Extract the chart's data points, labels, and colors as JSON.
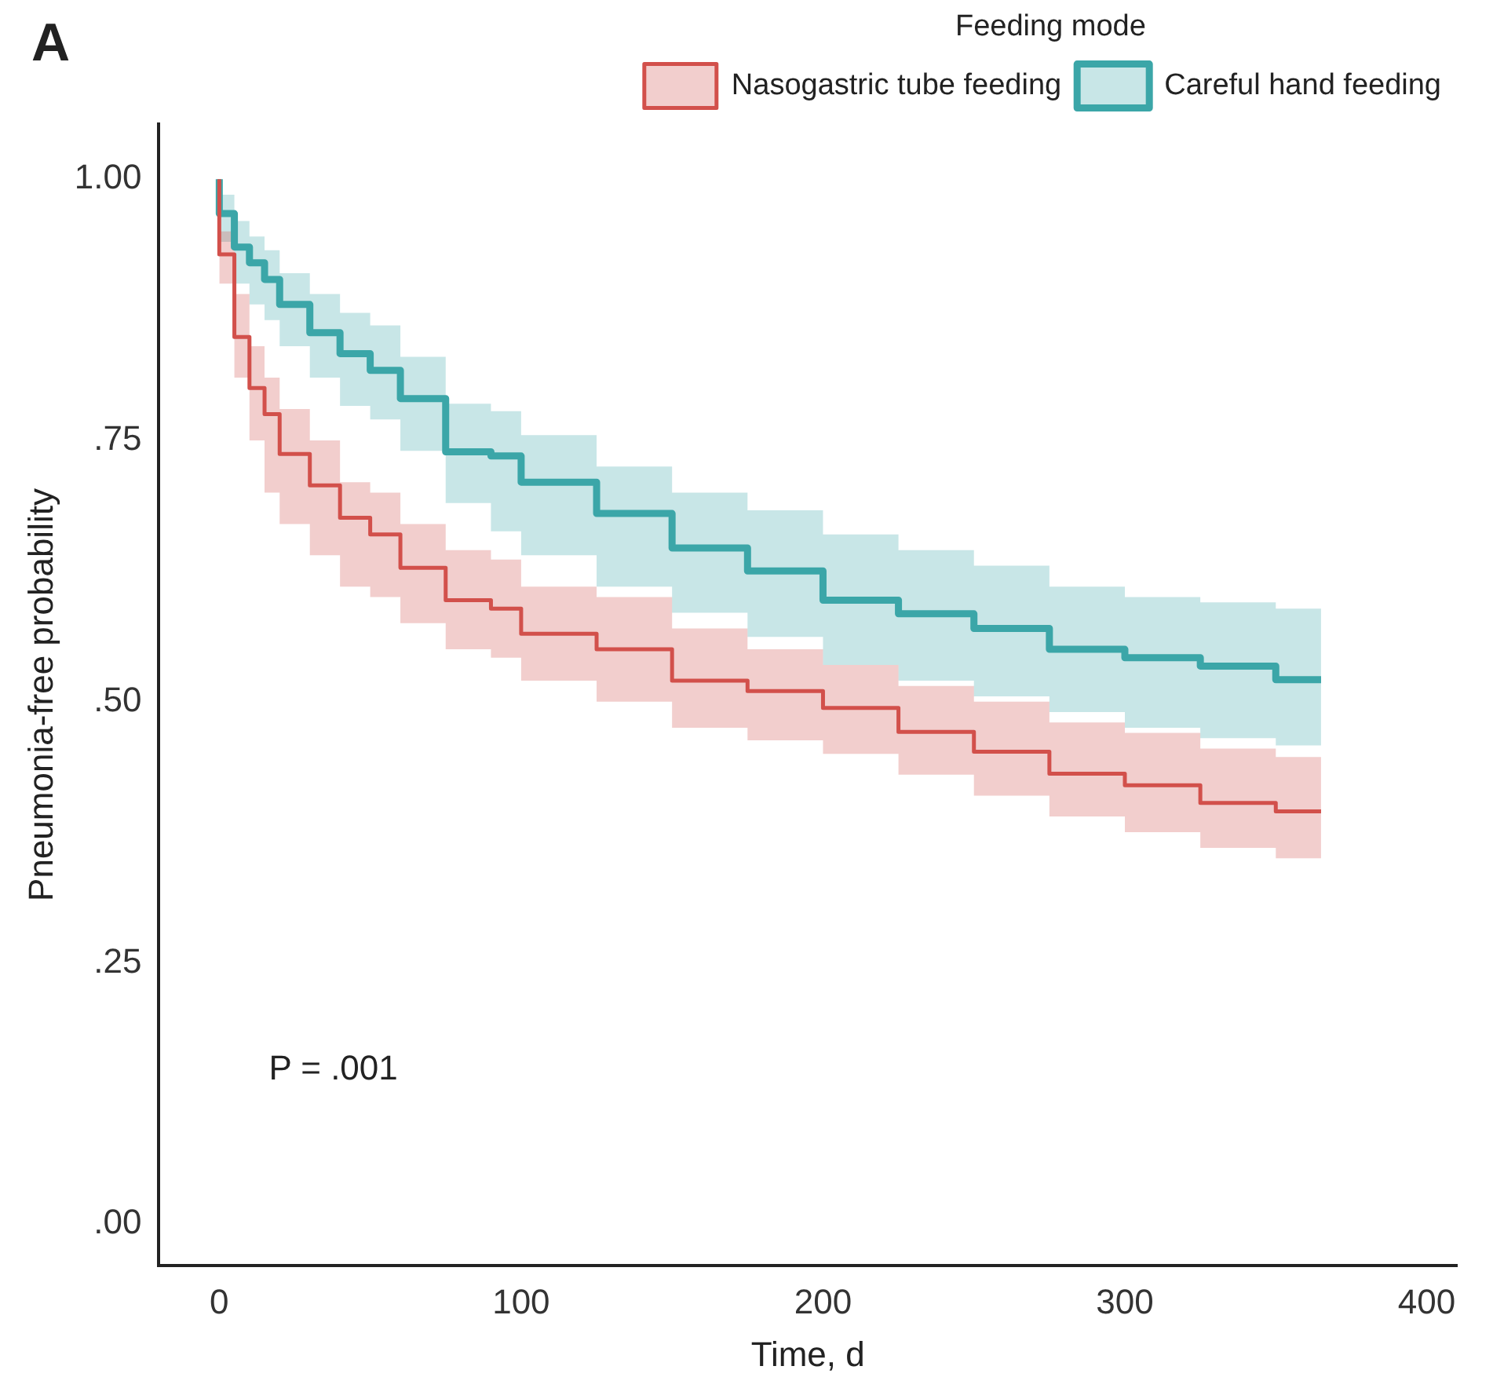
{
  "chart_data": {
    "type": "step",
    "title": "A",
    "xlabel": "Time, d",
    "ylabel": "Pneumonia-free probability",
    "legend_title": "Feeding mode",
    "legend": "top",
    "x": [
      0,
      5,
      10,
      15,
      20,
      30,
      40,
      50,
      60,
      75,
      90,
      100,
      125,
      150,
      175,
      200,
      225,
      250,
      275,
      300,
      325,
      350,
      365
    ],
    "series": [
      {
        "name": "Nasogastric tube feeding",
        "color": "#d2504b",
        "values": [
          1.0,
          0.928,
          0.849,
          0.8,
          0.775,
          0.737,
          0.707,
          0.676,
          0.66,
          0.628,
          0.597,
          0.589,
          0.565,
          0.55,
          0.52,
          0.51,
          0.494,
          0.471,
          0.452,
          0.431,
          0.42,
          0.403,
          0.395
        ],
        "upper": [
          1.0,
          0.95,
          0.89,
          0.84,
          0.81,
          0.78,
          0.75,
          0.71,
          0.7,
          0.67,
          0.645,
          0.636,
          0.61,
          0.6,
          0.57,
          0.55,
          0.535,
          0.515,
          0.5,
          0.48,
          0.47,
          0.455,
          0.447
        ],
        "lower": [
          1.0,
          0.9,
          0.81,
          0.75,
          0.7,
          0.67,
          0.64,
          0.61,
          0.6,
          0.575,
          0.55,
          0.542,
          0.52,
          0.5,
          0.475,
          0.463,
          0.45,
          0.43,
          0.41,
          0.39,
          0.375,
          0.36,
          0.35
        ]
      },
      {
        "name": "Careful hand feeding",
        "color": "#3ba6a8",
        "values": [
          1.0,
          0.967,
          0.935,
          0.92,
          0.904,
          0.88,
          0.853,
          0.833,
          0.817,
          0.79,
          0.739,
          0.735,
          0.71,
          0.68,
          0.647,
          0.625,
          0.597,
          0.584,
          0.57,
          0.55,
          0.542,
          0.534,
          0.521
        ],
        "upper": [
          1.0,
          0.985,
          0.96,
          0.945,
          0.932,
          0.91,
          0.89,
          0.872,
          0.86,
          0.83,
          0.785,
          0.778,
          0.755,
          0.725,
          0.7,
          0.683,
          0.66,
          0.645,
          0.63,
          0.61,
          0.6,
          0.595,
          0.589
        ],
        "lower": [
          1.0,
          0.94,
          0.9,
          0.88,
          0.865,
          0.84,
          0.81,
          0.783,
          0.77,
          0.74,
          0.69,
          0.663,
          0.64,
          0.61,
          0.585,
          0.562,
          0.535,
          0.52,
          0.505,
          0.49,
          0.475,
          0.465,
          0.458
        ]
      }
    ],
    "xlim": [
      -20,
      410
    ],
    "xticks": [
      0,
      100,
      200,
      300,
      400
    ],
    "ylim": [
      -0.04,
      1.053
    ],
    "yticks": [
      {
        "value": 0,
        "label": ".00"
      },
      {
        "value": 0.25,
        "label": ".25"
      },
      {
        "value": 0.5,
        "label": ".50"
      },
      {
        "value": 0.75,
        "label": ".75"
      },
      {
        "value": 1,
        "label": "1.00"
      }
    ],
    "grid": false,
    "annotations": [
      "P = .001"
    ]
  }
}
